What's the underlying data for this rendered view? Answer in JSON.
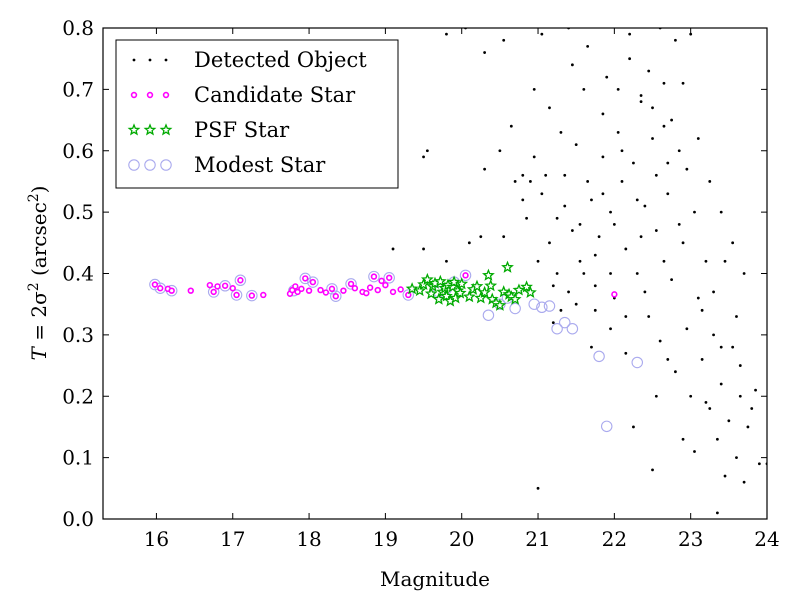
{
  "chart_data": {
    "type": "scatter",
    "xlabel": "Magnitude",
    "ylabel_parts": [
      "T",
      " = 2σ",
      "2",
      " (arcsec",
      "2",
      ")"
    ],
    "xlim": [
      15.3,
      24
    ],
    "ylim": [
      0,
      0.8
    ],
    "xticks": [
      16,
      17,
      18,
      19,
      20,
      21,
      22,
      23,
      24
    ],
    "yticks": [
      0.0,
      0.1,
      0.2,
      0.3,
      0.4,
      0.5,
      0.6,
      0.7,
      0.8
    ],
    "ytick_labels": [
      "0.0",
      "0.1",
      "0.2",
      "0.3",
      "0.4",
      "0.5",
      "0.6",
      "0.7",
      "0.8"
    ],
    "grid": false,
    "legend_position": "top-left",
    "colors": {
      "detected": "#000000",
      "candidate": "#ff00ff",
      "psf_star": "#00aa00",
      "modest": "#aaaaee"
    },
    "series": [
      {
        "name": "Detected Object",
        "marker": "dot",
        "points": [
          [
            19.1,
            0.44
          ],
          [
            19.55,
            0.6
          ],
          [
            19.5,
            0.59
          ],
          [
            19.5,
            0.44
          ],
          [
            19.8,
            0.42
          ],
          [
            20.1,
            0.45
          ],
          [
            20.25,
            0.46
          ],
          [
            20.3,
            0.57
          ],
          [
            20.55,
            0.46
          ],
          [
            20.8,
            0.52
          ],
          [
            20.8,
            0.56
          ],
          [
            20.85,
            0.49
          ],
          [
            20.9,
            0.55
          ],
          [
            20.95,
            0.59
          ],
          [
            21.0,
            0.42
          ],
          [
            21.05,
            0.53
          ],
          [
            21.1,
            0.56
          ],
          [
            21.15,
            0.45
          ],
          [
            21.2,
            0.38
          ],
          [
            21.25,
            0.49
          ],
          [
            21.3,
            0.63
          ],
          [
            21.35,
            0.51
          ],
          [
            21.4,
            0.37
          ],
          [
            21.45,
            0.47
          ],
          [
            21.5,
            0.61
          ],
          [
            21.55,
            0.42
          ],
          [
            21.6,
            0.7
          ],
          [
            21.65,
            0.55
          ],
          [
            21.7,
            0.52
          ],
          [
            21.75,
            0.38
          ],
          [
            21.8,
            0.46
          ],
          [
            21.85,
            0.59
          ],
          [
            21.9,
            0.72
          ],
          [
            21.95,
            0.5
          ],
          [
            22.0,
            0.36
          ],
          [
            22.05,
            0.63
          ],
          [
            22.1,
            0.55
          ],
          [
            22.15,
            0.44
          ],
          [
            22.2,
            0.75
          ],
          [
            22.25,
            0.58
          ],
          [
            22.3,
            0.4
          ],
          [
            22.35,
            0.68
          ],
          [
            22.4,
            0.51
          ],
          [
            22.45,
            0.33
          ],
          [
            22.5,
            0.62
          ],
          [
            22.55,
            0.47
          ],
          [
            22.6,
            0.29
          ],
          [
            22.65,
            0.71
          ],
          [
            22.7,
            0.53
          ],
          [
            22.75,
            0.39
          ],
          [
            22.8,
            0.24
          ],
          [
            22.85,
            0.6
          ],
          [
            22.9,
            0.45
          ],
          [
            22.95,
            0.31
          ],
          [
            23.0,
            0.2
          ],
          [
            23.05,
            0.5
          ],
          [
            23.1,
            0.36
          ],
          [
            23.15,
            0.26
          ],
          [
            23.2,
            0.42
          ],
          [
            23.25,
            0.18
          ],
          [
            23.3,
            0.3
          ],
          [
            23.35,
            0.13
          ],
          [
            23.4,
            0.22
          ],
          [
            23.45,
            0.07
          ],
          [
            23.5,
            0.16
          ],
          [
            23.55,
            0.28
          ],
          [
            23.6,
            0.1
          ],
          [
            23.65,
            0.2
          ],
          [
            23.7,
            0.06
          ],
          [
            23.75,
            0.15
          ],
          [
            23.85,
            0.21
          ],
          [
            23.9,
            0.09
          ],
          [
            24.0,
            0.09
          ],
          [
            21.2,
            0.32
          ],
          [
            21.0,
            0.05
          ],
          [
            21.5,
            0.35
          ],
          [
            21.75,
            0.34
          ],
          [
            22.25,
            0.15
          ],
          [
            22.5,
            0.08
          ],
          [
            23.35,
            0.01
          ],
          [
            22.9,
            0.13
          ],
          [
            23.2,
            0.19
          ],
          [
            22.55,
            0.2
          ],
          [
            22.7,
            0.26
          ],
          [
            21.95,
            0.31
          ],
          [
            21.7,
            0.28
          ],
          [
            21.3,
            0.34
          ],
          [
            22.15,
            0.27
          ],
          [
            23.05,
            0.11
          ],
          [
            19.8,
            0.79
          ],
          [
            20.05,
            0.8
          ],
          [
            20.3,
            0.76
          ],
          [
            20.55,
            0.78
          ],
          [
            21.05,
            0.79
          ],
          [
            21.4,
            0.8
          ],
          [
            21.65,
            0.77
          ],
          [
            22.2,
            0.79
          ],
          [
            22.6,
            0.8
          ],
          [
            23.0,
            0.79
          ],
          [
            22.8,
            0.78
          ],
          [
            22.45,
            0.73
          ],
          [
            21.85,
            0.66
          ],
          [
            22.35,
            0.69
          ],
          [
            22.75,
            0.65
          ],
          [
            23.1,
            0.62
          ],
          [
            23.25,
            0.55
          ],
          [
            23.4,
            0.5
          ],
          [
            23.55,
            0.45
          ],
          [
            23.3,
            0.37
          ],
          [
            23.6,
            0.33
          ],
          [
            23.7,
            0.4
          ],
          [
            23.45,
            0.42
          ],
          [
            22.95,
            0.57
          ],
          [
            22.65,
            0.64
          ],
          [
            22.05,
            0.7
          ],
          [
            21.45,
            0.74
          ],
          [
            21.15,
            0.67
          ],
          [
            20.65,
            0.64
          ],
          [
            20.7,
            0.55
          ],
          [
            20.5,
            0.6
          ],
          [
            20.95,
            0.7
          ],
          [
            21.35,
            0.56
          ],
          [
            21.55,
            0.48
          ],
          [
            21.75,
            0.43
          ],
          [
            22.0,
            0.48
          ],
          [
            22.3,
            0.52
          ],
          [
            22.55,
            0.56
          ],
          [
            22.85,
            0.48
          ],
          [
            23.15,
            0.34
          ],
          [
            23.4,
            0.28
          ],
          [
            23.65,
            0.25
          ],
          [
            23.8,
            0.18
          ],
          [
            22.65,
            0.42
          ],
          [
            22.4,
            0.37
          ],
          [
            22.15,
            0.33
          ],
          [
            21.95,
            0.4
          ],
          [
            21.6,
            0.4
          ],
          [
            21.85,
            0.53
          ],
          [
            22.1,
            0.6
          ],
          [
            22.5,
            0.67
          ],
          [
            22.9,
            0.71
          ],
          [
            22.7,
            0.58
          ],
          [
            22.35,
            0.46
          ],
          [
            21.25,
            0.4
          ]
        ]
      },
      {
        "name": "Candidate Star",
        "marker": "small-circle",
        "points": [
          [
            15.98,
            0.382
          ],
          [
            16.05,
            0.376
          ],
          [
            16.15,
            0.375
          ],
          [
            16.2,
            0.372
          ],
          [
            16.45,
            0.372
          ],
          [
            16.7,
            0.381
          ],
          [
            16.75,
            0.37
          ],
          [
            16.8,
            0.379
          ],
          [
            16.9,
            0.38
          ],
          [
            17.0,
            0.376
          ],
          [
            17.05,
            0.365
          ],
          [
            17.1,
            0.389
          ],
          [
            17.25,
            0.364
          ],
          [
            17.4,
            0.365
          ],
          [
            17.75,
            0.367
          ],
          [
            17.78,
            0.373
          ],
          [
            17.82,
            0.379
          ],
          [
            17.85,
            0.37
          ],
          [
            17.9,
            0.375
          ],
          [
            17.95,
            0.392
          ],
          [
            18.0,
            0.372
          ],
          [
            18.05,
            0.386
          ],
          [
            18.15,
            0.373
          ],
          [
            18.22,
            0.369
          ],
          [
            18.3,
            0.375
          ],
          [
            18.35,
            0.363
          ],
          [
            18.45,
            0.372
          ],
          [
            18.55,
            0.383
          ],
          [
            18.6,
            0.376
          ],
          [
            18.7,
            0.37
          ],
          [
            18.75,
            0.368
          ],
          [
            18.8,
            0.377
          ],
          [
            18.85,
            0.395
          ],
          [
            18.9,
            0.373
          ],
          [
            18.95,
            0.388
          ],
          [
            19.0,
            0.381
          ],
          [
            19.05,
            0.393
          ],
          [
            19.1,
            0.37
          ],
          [
            19.2,
            0.374
          ],
          [
            19.3,
            0.365
          ],
          [
            20.05,
            0.397
          ],
          [
            22.0,
            0.366
          ]
        ]
      },
      {
        "name": "PSF Star",
        "marker": "star",
        "points": [
          [
            19.35,
            0.375
          ],
          [
            19.45,
            0.372
          ],
          [
            19.5,
            0.382
          ],
          [
            19.55,
            0.39
          ],
          [
            19.6,
            0.367
          ],
          [
            19.62,
            0.379
          ],
          [
            19.65,
            0.384
          ],
          [
            19.7,
            0.358
          ],
          [
            19.72,
            0.387
          ],
          [
            19.75,
            0.37
          ],
          [
            19.78,
            0.376
          ],
          [
            19.8,
            0.363
          ],
          [
            19.82,
            0.381
          ],
          [
            19.85,
            0.355
          ],
          [
            19.88,
            0.378
          ],
          [
            19.9,
            0.386
          ],
          [
            19.92,
            0.36
          ],
          [
            19.95,
            0.372
          ],
          [
            19.98,
            0.368
          ],
          [
            20.0,
            0.383
          ],
          [
            20.1,
            0.362
          ],
          [
            20.15,
            0.374
          ],
          [
            20.2,
            0.379
          ],
          [
            20.25,
            0.36
          ],
          [
            20.3,
            0.369
          ],
          [
            20.35,
            0.397
          ],
          [
            20.38,
            0.38
          ],
          [
            20.4,
            0.358
          ],
          [
            20.45,
            0.352
          ],
          [
            20.5,
            0.348
          ],
          [
            20.55,
            0.37
          ],
          [
            20.6,
            0.41
          ],
          [
            20.62,
            0.366
          ],
          [
            20.65,
            0.362
          ],
          [
            20.7,
            0.358
          ],
          [
            20.75,
            0.373
          ],
          [
            20.85,
            0.378
          ],
          [
            20.9,
            0.369
          ]
        ]
      },
      {
        "name": "Modest Star",
        "marker": "open-circle",
        "points": [
          [
            15.98,
            0.382
          ],
          [
            16.05,
            0.376
          ],
          [
            16.2,
            0.372
          ],
          [
            16.75,
            0.37
          ],
          [
            16.9,
            0.38
          ],
          [
            17.05,
            0.365
          ],
          [
            17.1,
            0.389
          ],
          [
            17.25,
            0.364
          ],
          [
            17.8,
            0.372
          ],
          [
            17.95,
            0.392
          ],
          [
            18.05,
            0.386
          ],
          [
            18.3,
            0.375
          ],
          [
            18.35,
            0.363
          ],
          [
            18.55,
            0.383
          ],
          [
            18.85,
            0.395
          ],
          [
            19.05,
            0.393
          ],
          [
            19.3,
            0.365
          ],
          [
            19.7,
            0.37
          ],
          [
            19.9,
            0.386
          ],
          [
            20.05,
            0.397
          ],
          [
            20.35,
            0.332
          ],
          [
            20.5,
            0.35
          ],
          [
            20.7,
            0.343
          ],
          [
            20.95,
            0.35
          ],
          [
            21.05,
            0.345
          ],
          [
            21.15,
            0.347
          ],
          [
            21.25,
            0.31
          ],
          [
            21.35,
            0.32
          ],
          [
            21.45,
            0.31
          ],
          [
            21.8,
            0.265
          ],
          [
            21.9,
            0.151
          ],
          [
            22.3,
            0.255
          ],
          [
            20.6,
            0.36
          ],
          [
            19.8,
            0.375
          ]
        ]
      }
    ]
  }
}
